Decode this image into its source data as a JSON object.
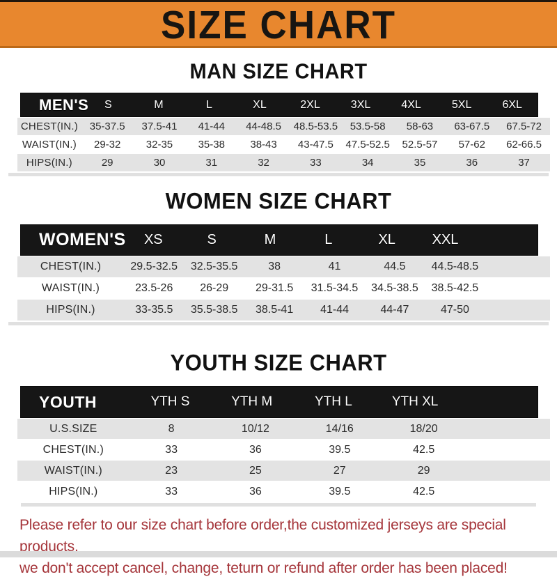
{
  "banner": {
    "title": "SIZE CHART"
  },
  "colors": {
    "banner_bg": "#E8872E",
    "header_bar_bg": "#161616",
    "stripe_gray": "#E3E3E3",
    "footer_red": "#A5353A"
  },
  "sections": [
    {
      "title": "MAN SIZE CHART",
      "header_label": "MEN'S",
      "columns": [
        "S",
        "M",
        "L",
        "XL",
        "2XL",
        "3XL",
        "4XL",
        "5XL",
        "6XL"
      ],
      "rows": [
        {
          "label": "CHEST(IN.)",
          "values": [
            "35-37.5",
            "37.5-41",
            "41-44",
            "44-48.5",
            "48.5-53.5",
            "53.5-58",
            "58-63",
            "63-67.5",
            "67.5-72"
          ]
        },
        {
          "label": "WAIST(IN.)",
          "values": [
            "29-32",
            "32-35",
            "35-38",
            "38-43",
            "43-47.5",
            "47.5-52.5",
            "52.5-57",
            "57-62",
            "62-66.5"
          ]
        },
        {
          "label": "HIPS(IN.)",
          "values": [
            "29",
            "30",
            "31",
            "32",
            "33",
            "34",
            "35",
            "36",
            "37"
          ]
        }
      ]
    },
    {
      "title": "WOMEN SIZE CHART",
      "header_label": "WOMEN'S",
      "columns": [
        "XS",
        "S",
        "M",
        "L",
        "XL",
        "XXL"
      ],
      "rows": [
        {
          "label": "CHEST(IN.)",
          "values": [
            "29.5-32.5",
            "32.5-35.5",
            "38",
            "41",
            "44.5",
            "44.5-48.5"
          ]
        },
        {
          "label": "WAIST(IN.)",
          "values": [
            "23.5-26",
            "26-29",
            "29-31.5",
            "31.5-34.5",
            "34.5-38.5",
            "38.5-42.5"
          ]
        },
        {
          "label": "HIPS(IN.)",
          "values": [
            "33-35.5",
            "35.5-38.5",
            "38.5-41",
            "41-44",
            "44-47",
            "47-50"
          ]
        }
      ]
    },
    {
      "title": "YOUTH SIZE CHART",
      "header_label": "YOUTH",
      "columns": [
        "YTH S",
        "YTH M",
        "YTH L",
        "YTH XL"
      ],
      "rows": [
        {
          "label": "U.S.SIZE",
          "values": [
            "8",
            "10/12",
            "14/16",
            "18/20"
          ]
        },
        {
          "label": "CHEST(IN.)",
          "values": [
            "33",
            "36",
            "39.5",
            "42.5"
          ]
        },
        {
          "label": "WAIST(IN.)",
          "values": [
            "23",
            "25",
            "27",
            "29"
          ]
        },
        {
          "label": "HIPS(IN.)",
          "values": [
            "33",
            "36",
            "39.5",
            "42.5"
          ]
        }
      ]
    }
  ],
  "footer": {
    "line1": "Please refer to our size chart before order,the customized jerseys are special products,",
    "line2": "we don't accept cancel, change, teturn or refund after order has been placed!"
  }
}
